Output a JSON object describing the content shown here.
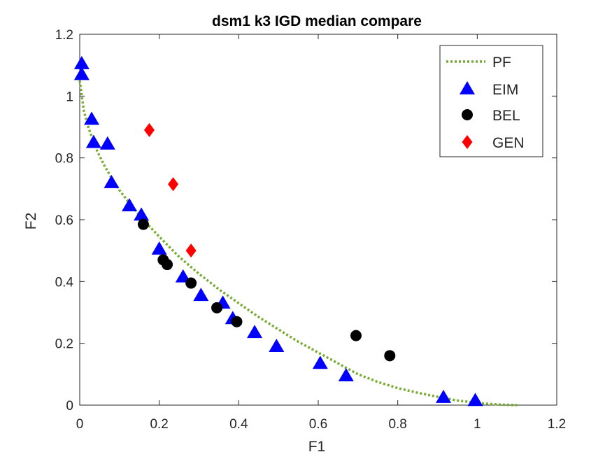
{
  "chart_data": {
    "type": "scatter",
    "title": "dsm1 k3 IGD median compare",
    "xlabel": "F1",
    "ylabel": "F2",
    "xlim": [
      0,
      1.2
    ],
    "ylim": [
      0,
      1.2
    ],
    "xticks": [
      "0",
      "0.2",
      "0.4",
      "0.6",
      "0.8",
      "1",
      "1.2"
    ],
    "yticks": [
      "0",
      "0.2",
      "0.4",
      "0.6",
      "0.8",
      "1",
      "1.2"
    ],
    "legend_position": "top-right",
    "grid": false,
    "series": [
      {
        "name": "PF",
        "kind": "line",
        "style": "dotted",
        "color": "#77AC30",
        "x": [
          0.0,
          0.01,
          0.02,
          0.04,
          0.06,
          0.08,
          0.1,
          0.13,
          0.16,
          0.2,
          0.25,
          0.3,
          0.35,
          0.4,
          0.45,
          0.5,
          0.55,
          0.6,
          0.65,
          0.7,
          0.75,
          0.8,
          0.85,
          0.9,
          0.95,
          1.0,
          1.05,
          1.1
        ],
        "y": [
          1.05,
          0.955,
          0.905,
          0.833,
          0.78,
          0.735,
          0.695,
          0.645,
          0.6,
          0.545,
          0.48,
          0.425,
          0.375,
          0.33,
          0.285,
          0.245,
          0.205,
          0.17,
          0.135,
          0.1,
          0.075,
          0.055,
          0.04,
          0.027,
          0.015,
          0.007,
          0.002,
          0.0
        ]
      },
      {
        "name": "EIM",
        "kind": "marker",
        "marker": "triangle",
        "color": "#0000FF",
        "x": [
          0.005,
          0.005,
          0.03,
          0.035,
          0.07,
          0.08,
          0.125,
          0.155,
          0.2,
          0.26,
          0.305,
          0.36,
          0.385,
          0.44,
          0.495,
          0.605,
          0.67,
          0.915,
          0.995
        ],
        "y": [
          1.105,
          1.07,
          0.925,
          0.85,
          0.845,
          0.72,
          0.645,
          0.615,
          0.505,
          0.415,
          0.355,
          0.33,
          0.28,
          0.235,
          0.19,
          0.135,
          0.095,
          0.025,
          0.015
        ]
      },
      {
        "name": "BEL",
        "kind": "marker",
        "marker": "circle",
        "color": "#000000",
        "x": [
          0.16,
          0.21,
          0.22,
          0.28,
          0.345,
          0.395,
          0.695,
          0.78
        ],
        "y": [
          0.585,
          0.47,
          0.455,
          0.395,
          0.315,
          0.27,
          0.225,
          0.16
        ]
      },
      {
        "name": "GEN",
        "kind": "marker",
        "marker": "diamond",
        "color": "#FF0000",
        "x": [
          0.175,
          0.235,
          0.28
        ],
        "y": [
          0.89,
          0.715,
          0.5
        ]
      }
    ]
  }
}
